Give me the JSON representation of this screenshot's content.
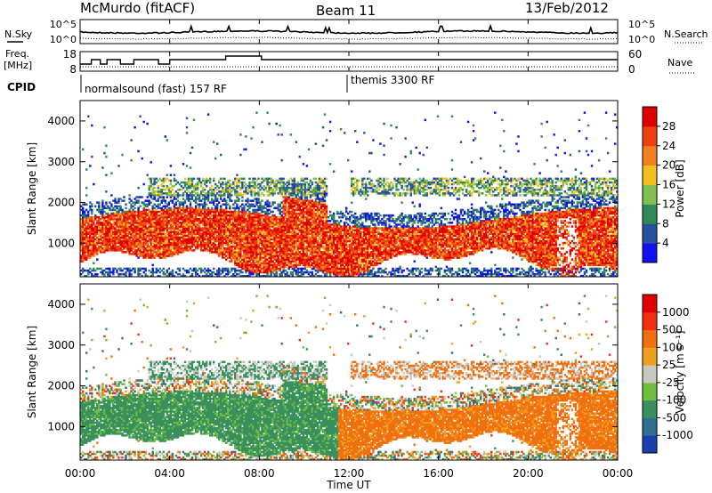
{
  "chart_data": {
    "type": "heatmap",
    "header": {
      "station": "McMurdo (fitACF)",
      "beam": "Beam 11",
      "date": "13/Feb/2012"
    },
    "noise_panel": {
      "left_label": "N.Sky",
      "left_ticks": [
        "10^5",
        "10^0"
      ],
      "right_label": "N.Search",
      "right_ticks": [
        "10^5",
        "10^0"
      ]
    },
    "freq_panel": {
      "left_label_line1": "Freq.",
      "left_label_line2": "[MHz]",
      "left_ticks": [
        "18",
        "8"
      ],
      "right_label": "Nave",
      "right_ticks": [
        "60",
        "0"
      ]
    },
    "cpid": {
      "label": "CPID",
      "modes": [
        {
          "name": "normalsound (fast) 157 RF",
          "start": "00:00",
          "end": "12:00"
        },
        {
          "name": "themis 3300 RF",
          "start": "12:00",
          "end": "24:00"
        }
      ]
    },
    "time_axis": {
      "label": "Time UT",
      "ticks": [
        "00:00",
        "04:00",
        "08:00",
        "12:00",
        "16:00",
        "20:00",
        "00:00"
      ],
      "range_hours": [
        0,
        24
      ]
    },
    "range_axis": {
      "label": "Slant Range [km]",
      "ticks": [
        1000,
        2000,
        3000,
        4000
      ],
      "range_km": [
        180,
        4500
      ]
    },
    "panels": [
      {
        "id": "power",
        "colorbar_label": "Power [dB]",
        "colorbar_ticks": [
          "28",
          "24",
          "20",
          "16",
          "12",
          "8",
          "4"
        ],
        "colors": [
          "#1010f0",
          "#2850a0",
          "#2e8b57",
          "#7fbf4f",
          "#f0c020",
          "#f08020",
          "#f04010",
          "#e00000"
        ]
      },
      {
        "id": "velocity",
        "colorbar_label": "Velocity [m s⁻¹]",
        "colorbar_ticks": [
          "1000",
          "500",
          "100",
          "25",
          "-25",
          "-100",
          "-500",
          "-1000"
        ],
        "colors": [
          "#1a40b0",
          "#2f6f8f",
          "#3a8f5f",
          "#6fbf3f",
          "#c8c8c0",
          "#f0a020",
          "#f07010",
          "#f03010",
          "#e00000"
        ]
      }
    ]
  }
}
